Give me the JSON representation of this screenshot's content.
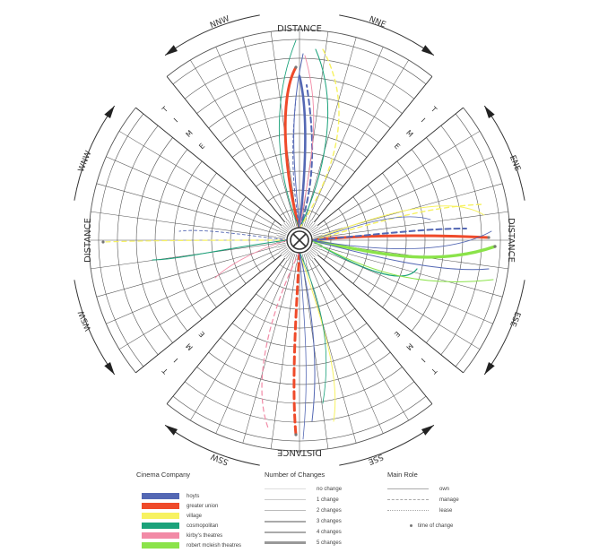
{
  "compass": {
    "center_label": "DISTANCE",
    "directions": [
      "NNW",
      "NNE",
      "ENE",
      "ESE",
      "SSE",
      "SSW",
      "WSW",
      "WNW"
    ],
    "axis_labels": [
      "DISTANCE",
      "DISTANCE",
      "DISTANCE",
      "DISTANCE"
    ],
    "time_markers": [
      "T",
      "I",
      "M",
      "E"
    ]
  },
  "legend": {
    "company_title": "Cinema Company",
    "companies": [
      {
        "name": "hoyts",
        "color": "#5468b4"
      },
      {
        "name": "greater union",
        "color": "#ef4a2a"
      },
      {
        "name": "village",
        "color": "#f7f261"
      },
      {
        "name": "cosmopolitan",
        "color": "#1aa27a"
      },
      {
        "name": "kirby's theatres",
        "color": "#f28aa6"
      },
      {
        "name": "robert mcleish theatres",
        "color": "#8be34a"
      }
    ],
    "changes_title": "Number of Changes",
    "changes": [
      "no change",
      "1 change",
      "2 changes",
      "3 changes",
      "4 changes",
      "5 changes"
    ],
    "role_title": "Main Role",
    "roles": [
      "own",
      "manage",
      "lease"
    ],
    "time_of_change": "time of change"
  }
}
